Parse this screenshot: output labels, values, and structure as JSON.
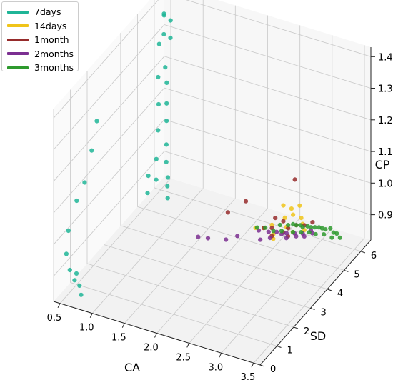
{
  "chart_data": {
    "type": "scatter",
    "projection": "3d",
    "xlabel": "CA",
    "ylabel": "SD",
    "zlabel": "CP",
    "xticks": [
      "0.5",
      "1.0",
      "1.5",
      "2.0",
      "2.5",
      "3.0",
      "3.5"
    ],
    "yticks": [
      "0",
      "1",
      "2",
      "3",
      "4",
      "5",
      "6"
    ],
    "zticks": [
      "0.9",
      "1.0",
      "1.1",
      "1.2",
      "1.3",
      "1.4"
    ],
    "xlim": [
      0.4,
      3.6
    ],
    "ylim": [
      0,
      6.6
    ],
    "zlim": [
      0.82,
      1.43
    ],
    "grid": true,
    "legend_position": "top-left",
    "series": [
      {
        "name": "7days",
        "color": "#1fb597",
        "points": [
          [
            0.5,
            6.2,
            1.36
          ],
          [
            0.55,
            6.0,
            1.38
          ],
          [
            0.6,
            6.2,
            1.35
          ],
          [
            0.6,
            5.8,
            1.33
          ],
          [
            0.58,
            5.6,
            1.31
          ],
          [
            0.65,
            6.0,
            1.31
          ],
          [
            0.7,
            5.5,
            1.25
          ],
          [
            0.75,
            5.4,
            1.21
          ],
          [
            0.8,
            5.2,
            1.16
          ],
          [
            0.85,
            5.0,
            1.12
          ],
          [
            0.9,
            4.8,
            1.06
          ],
          [
            0.95,
            4.6,
            1.02
          ],
          [
            1.0,
            4.5,
            0.98
          ],
          [
            1.02,
            4.4,
            0.96
          ],
          [
            1.05,
            4.3,
            0.93
          ],
          [
            0.72,
            5.0,
            1.25
          ],
          [
            0.78,
            4.8,
            1.18
          ],
          [
            0.85,
            4.5,
            1.12
          ],
          [
            0.9,
            4.2,
            1.05
          ],
          [
            0.95,
            4.0,
            1.0
          ],
          [
            0.88,
            3.8,
            1.02
          ],
          [
            0.92,
            3.6,
            0.98
          ],
          [
            0.55,
            2.0,
            1.28
          ],
          [
            0.6,
            1.5,
            1.22
          ],
          [
            0.62,
            1.0,
            1.15
          ],
          [
            0.55,
            0.8,
            1.1
          ],
          [
            0.5,
            0.5,
            1.02
          ],
          [
            0.52,
            0.3,
            0.96
          ],
          [
            0.6,
            0.2,
            0.92
          ],
          [
            0.7,
            0.1,
            0.9
          ],
          [
            0.75,
            0.2,
            0.88
          ],
          [
            0.8,
            0.1,
            0.86
          ],
          [
            0.65,
            0.4,
            0.9
          ]
        ]
      },
      {
        "name": "14days",
        "color": "#f0c419",
        "points": [
          [
            2.4,
            6.0,
            0.89
          ],
          [
            2.5,
            6.1,
            0.88
          ],
          [
            2.6,
            6.2,
            0.89
          ],
          [
            2.55,
            6.0,
            0.87
          ],
          [
            2.45,
            5.9,
            0.86
          ],
          [
            2.65,
            6.1,
            0.86
          ],
          [
            2.7,
            6.0,
            0.85
          ],
          [
            2.5,
            5.8,
            0.84
          ],
          [
            2.3,
            5.7,
            0.84
          ],
          [
            2.2,
            5.6,
            0.83
          ],
          [
            2.1,
            5.5,
            0.83
          ],
          [
            2.35,
            5.6,
            0.82
          ],
          [
            2.6,
            5.8,
            0.83
          ],
          [
            2.75,
            5.9,
            0.84
          ],
          [
            2.4,
            5.4,
            0.82
          ]
        ]
      },
      {
        "name": "1month",
        "color": "#962b2b",
        "points": [
          [
            1.8,
            5.0,
            0.89
          ],
          [
            2.0,
            5.3,
            0.92
          ],
          [
            2.3,
            5.9,
            0.85
          ],
          [
            2.4,
            6.0,
            0.84
          ],
          [
            2.5,
            5.9,
            0.83
          ],
          [
            2.6,
            6.0,
            0.84
          ],
          [
            2.3,
            5.7,
            0.83
          ],
          [
            2.2,
            5.6,
            0.83
          ],
          [
            2.45,
            5.8,
            0.82
          ],
          [
            2.7,
            6.1,
            0.84
          ],
          [
            2.8,
            6.2,
            0.85
          ],
          [
            2.5,
            6.3,
            0.96
          ],
          [
            2.55,
            5.7,
            0.82
          ],
          [
            2.35,
            5.5,
            0.82
          ]
        ]
      },
      {
        "name": "2months",
        "color": "#7b2f91",
        "points": [
          [
            1.6,
            4.0,
            0.86
          ],
          [
            1.7,
            4.2,
            0.85
          ],
          [
            1.9,
            4.5,
            0.84
          ],
          [
            2.0,
            4.8,
            0.84
          ],
          [
            2.2,
            5.3,
            0.84
          ],
          [
            2.3,
            5.5,
            0.83
          ],
          [
            2.4,
            5.6,
            0.83
          ],
          [
            2.5,
            5.8,
            0.82
          ],
          [
            2.6,
            5.9,
            0.82
          ],
          [
            2.7,
            6.0,
            0.82
          ],
          [
            2.8,
            6.1,
            0.83
          ],
          [
            2.45,
            5.7,
            0.82
          ],
          [
            2.55,
            5.6,
            0.82
          ],
          [
            2.65,
            5.8,
            0.82
          ],
          [
            2.35,
            5.4,
            0.82
          ],
          [
            2.75,
            5.9,
            0.82
          ],
          [
            2.85,
            6.0,
            0.83
          ],
          [
            2.25,
            5.2,
            0.82
          ]
        ]
      },
      {
        "name": "3months",
        "color": "#2e9a2e",
        "points": [
          [
            2.4,
            5.8,
            0.84
          ],
          [
            2.5,
            5.9,
            0.84
          ],
          [
            2.6,
            6.0,
            0.84
          ],
          [
            2.7,
            6.0,
            0.84
          ],
          [
            2.8,
            6.1,
            0.84
          ],
          [
            2.9,
            6.2,
            0.84
          ],
          [
            3.0,
            6.2,
            0.84
          ],
          [
            3.05,
            6.3,
            0.84
          ],
          [
            3.1,
            6.3,
            0.83
          ],
          [
            3.15,
            6.3,
            0.83
          ],
          [
            3.2,
            6.3,
            0.82
          ],
          [
            2.55,
            6.0,
            0.84
          ],
          [
            2.65,
            6.05,
            0.84
          ],
          [
            2.75,
            6.1,
            0.84
          ],
          [
            2.85,
            6.15,
            0.84
          ],
          [
            2.95,
            6.2,
            0.84
          ],
          [
            2.45,
            5.7,
            0.83
          ],
          [
            2.35,
            5.6,
            0.83
          ],
          [
            2.25,
            5.5,
            0.84
          ],
          [
            2.15,
            5.4,
            0.84
          ],
          [
            2.6,
            5.8,
            0.83
          ],
          [
            2.7,
            5.9,
            0.83
          ],
          [
            2.8,
            6.0,
            0.83
          ],
          [
            2.9,
            6.0,
            0.83
          ],
          [
            3.0,
            6.1,
            0.83
          ],
          [
            3.1,
            6.2,
            0.82
          ]
        ]
      }
    ]
  }
}
